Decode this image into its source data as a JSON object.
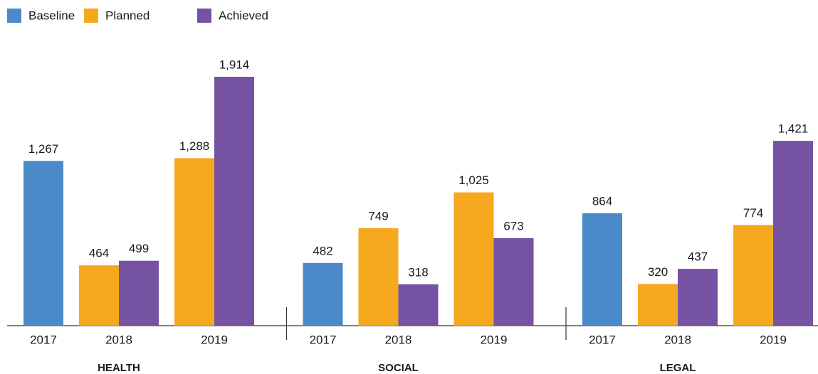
{
  "chart_data": {
    "type": "bar",
    "groups": [
      "HEALTH",
      "SOCIAL",
      "LEGAL"
    ],
    "categories": [
      "2017",
      "2018",
      "2019",
      "2017",
      "2018",
      "2019",
      "2017",
      "2018",
      "2019"
    ],
    "series": [
      {
        "name": "Baseline",
        "color": "#4a8ac9",
        "values": [
          1267,
          null,
          null,
          482,
          null,
          null,
          864,
          null,
          null
        ],
        "value_labels": [
          "1,267",
          null,
          null,
          "482",
          null,
          null,
          "864",
          null,
          null
        ]
      },
      {
        "name": "Planned",
        "color": "#f5a81e",
        "values": [
          null,
          464,
          1288,
          null,
          749,
          1025,
          null,
          320,
          774
        ],
        "value_labels": [
          null,
          "464",
          "1,288",
          null,
          "749",
          "1,025",
          null,
          "320",
          "774"
        ]
      },
      {
        "name": "Achieved",
        "color": "#7652a3",
        "values": [
          null,
          499,
          1914,
          null,
          318,
          673,
          null,
          437,
          1421
        ],
        "value_labels": [
          null,
          "499",
          "1,914",
          null,
          "318",
          "673",
          null,
          "437",
          "1,421"
        ]
      }
    ]
  }
}
